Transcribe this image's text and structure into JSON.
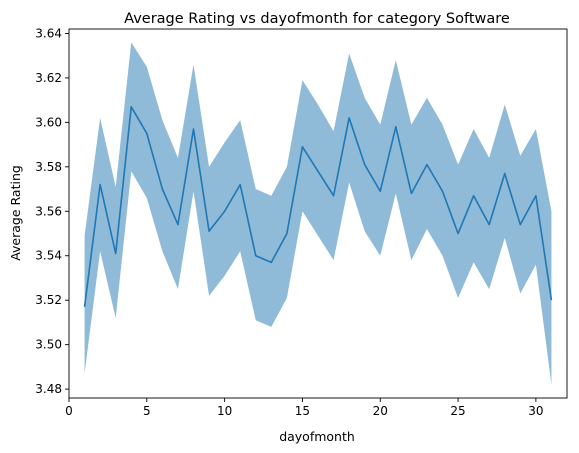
{
  "chart_data": {
    "type": "line",
    "title": "Average Rating vs dayofmonth for category Software",
    "xlabel": "dayofmonth",
    "ylabel": "Average Rating",
    "xlim": [
      0,
      32
    ],
    "ylim": [
      3.476,
      3.642
    ],
    "xticks": [
      0,
      5,
      10,
      15,
      20,
      25,
      30
    ],
    "yticks": [
      3.48,
      3.5,
      3.52,
      3.54,
      3.56,
      3.58,
      3.6,
      3.62,
      3.64
    ],
    "ytick_labels": [
      "3.48",
      "3.50",
      "3.52",
      "3.54",
      "3.56",
      "3.58",
      "3.60",
      "3.62",
      "3.64"
    ],
    "grid": false,
    "colors": {
      "line": "#1f77b4",
      "band": "#1f77b4"
    },
    "series": [
      {
        "x": [
          1,
          2,
          3,
          4,
          5,
          6,
          7,
          8,
          9,
          10,
          11,
          12,
          13,
          14,
          15,
          16,
          17,
          18,
          19,
          20,
          21,
          22,
          23,
          24,
          25,
          26,
          27,
          28,
          29,
          30,
          31
        ],
        "values": [
          3.517,
          3.572,
          3.541,
          3.607,
          3.595,
          3.57,
          3.554,
          3.597,
          3.551,
          3.56,
          3.572,
          3.54,
          3.537,
          3.55,
          3.589,
          3.578,
          3.567,
          3.602,
          3.581,
          3.569,
          3.598,
          3.568,
          3.581,
          3.569,
          3.55,
          3.567,
          3.554,
          3.577,
          3.554,
          3.567,
          3.52
        ],
        "ci_lower": [
          3.487,
          3.542,
          3.512,
          3.578,
          3.566,
          3.542,
          3.525,
          3.569,
          3.522,
          3.531,
          3.542,
          3.511,
          3.508,
          3.521,
          3.56,
          3.549,
          3.538,
          3.573,
          3.551,
          3.54,
          3.568,
          3.538,
          3.552,
          3.54,
          3.521,
          3.537,
          3.525,
          3.548,
          3.523,
          3.536,
          3.482
        ],
        "ci_upper": [
          3.549,
          3.602,
          3.571,
          3.636,
          3.625,
          3.601,
          3.584,
          3.626,
          3.58,
          3.591,
          3.601,
          3.57,
          3.567,
          3.58,
          3.619,
          3.608,
          3.596,
          3.631,
          3.611,
          3.599,
          3.628,
          3.599,
          3.611,
          3.599,
          3.581,
          3.597,
          3.584,
          3.608,
          3.585,
          3.597,
          3.56
        ]
      }
    ]
  }
}
